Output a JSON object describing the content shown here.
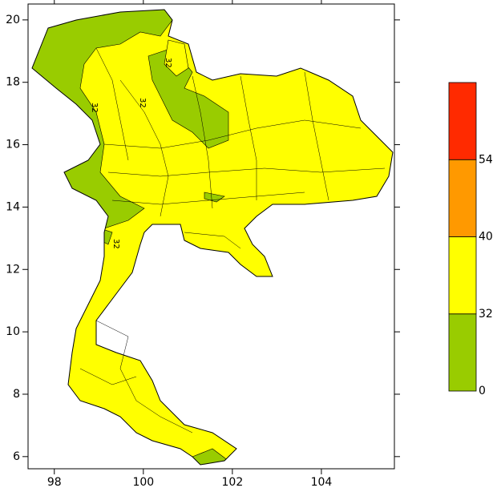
{
  "map": {
    "xlim": [
      97.41,
      105.64
    ],
    "ylim": [
      5.61,
      20.51
    ],
    "xticks": [
      98,
      100,
      102,
      104
    ],
    "yticks": [
      6,
      8,
      10,
      12,
      14,
      16,
      18,
      20
    ],
    "contour_labels": [
      "32",
      "32",
      "32",
      "32"
    ]
  },
  "colorbar": {
    "levels": [
      0,
      32,
      40,
      54
    ],
    "colors": [
      "#99cc00",
      "#ffff00",
      "#ff9900",
      "#ff2a00"
    ]
  }
}
